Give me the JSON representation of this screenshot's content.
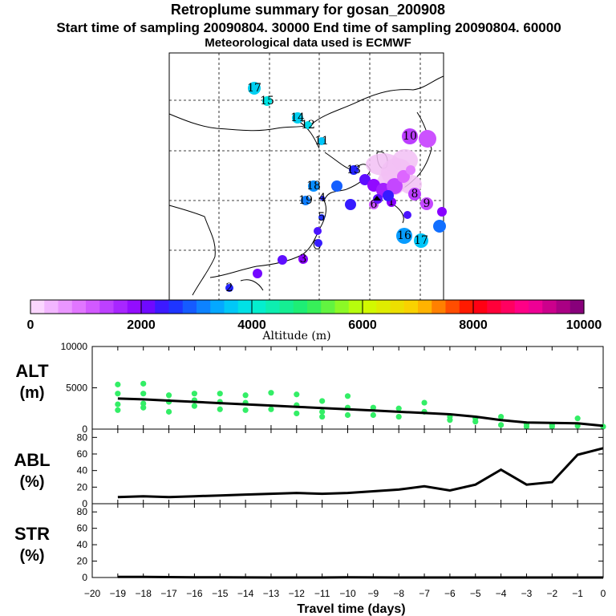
{
  "chart_data": [
    {
      "type": "map",
      "title": "Retroplume summary for gosan_200908",
      "subtitle": "Start time of sampling 20090804. 30000     End time of sampling 20090804. 60000",
      "subtitle2": "Meteorological data used is ECMWF",
      "colorbar": {
        "label": "Altitude (m)",
        "range": [
          0,
          10000
        ],
        "tick_labels": [
          "0",
          "2000",
          "4000",
          "6000",
          "8000",
          "10000"
        ]
      },
      "plume_labels": [
        "17",
        "15",
        "14",
        "12",
        "11",
        "10",
        "13",
        "18",
        "19",
        "16",
        "17",
        "9",
        "8",
        "6",
        "5",
        "4",
        "3",
        "2",
        "1"
      ]
    },
    {
      "type": "scatter",
      "ylabel_line1": "ALT",
      "ylabel_line2": "(m)",
      "ylim": [
        0,
        10000
      ],
      "y_tick_labels": [
        "0",
        "5000",
        "10000"
      ],
      "x": [
        -19,
        -18,
        -17,
        -16,
        -15,
        -14,
        -13,
        -12,
        -11,
        -10,
        -9,
        -8,
        -7,
        -6,
        -5,
        -4,
        -3,
        -2,
        -1,
        0
      ],
      "mean_line": [
        3700,
        3600,
        3450,
        3300,
        3150,
        3000,
        2850,
        2700,
        2550,
        2400,
        2250,
        2100,
        1950,
        1800,
        1500,
        1100,
        800,
        750,
        700,
        400
      ],
      "points": [
        [
          -19,
          5400
        ],
        [
          -19,
          4300
        ],
        [
          -19,
          3000
        ],
        [
          -19,
          2300
        ],
        [
          -18,
          5500
        ],
        [
          -18,
          4300
        ],
        [
          -18,
          3100
        ],
        [
          -18,
          2600
        ],
        [
          -17,
          4100
        ],
        [
          -17,
          3300
        ],
        [
          -17,
          2100
        ],
        [
          -16,
          4300
        ],
        [
          -16,
          3500
        ],
        [
          -16,
          2800
        ],
        [
          -15,
          4300
        ],
        [
          -15,
          3300
        ],
        [
          -15,
          2400
        ],
        [
          -14,
          4100
        ],
        [
          -14,
          3200
        ],
        [
          -14,
          2300
        ],
        [
          -13,
          4400
        ],
        [
          -13,
          2400
        ],
        [
          -12,
          4200
        ],
        [
          -12,
          2900
        ],
        [
          -12,
          1900
        ],
        [
          -11,
          3400
        ],
        [
          -11,
          2100
        ],
        [
          -11,
          1500
        ],
        [
          -10,
          4000
        ],
        [
          -10,
          2600
        ],
        [
          -10,
          1700
        ],
        [
          -9,
          2600
        ],
        [
          -9,
          1700
        ],
        [
          -8,
          2500
        ],
        [
          -8,
          1500
        ],
        [
          -7,
          3200
        ],
        [
          -7,
          2100
        ],
        [
          -6,
          1500
        ],
        [
          -6,
          1100
        ],
        [
          -5,
          1300
        ],
        [
          -5,
          900
        ],
        [
          -4,
          1500
        ],
        [
          -4,
          500
        ],
        [
          -3,
          600
        ],
        [
          -3,
          300
        ],
        [
          -2,
          500
        ],
        [
          -2,
          300
        ],
        [
          -1,
          1300
        ],
        [
          -1,
          400
        ],
        [
          0,
          300
        ]
      ]
    },
    {
      "type": "line",
      "ylabel_line1": "ABL",
      "ylabel_line2": "(%)",
      "ylim": [
        0,
        90
      ],
      "y_tick_labels": [
        "0",
        "20",
        "40",
        "60",
        "80"
      ],
      "x": [
        -19,
        -18,
        -17,
        -16,
        -15,
        -14,
        -13,
        -12,
        -11,
        -10,
        -9,
        -8,
        -7,
        -6,
        -5,
        -4,
        -3,
        -2,
        -1,
        0
      ],
      "values": [
        8,
        9,
        8,
        9,
        10,
        11,
        12,
        13,
        12,
        13,
        15,
        17,
        21,
        16,
        23,
        41,
        23,
        26,
        59,
        67
      ]
    },
    {
      "type": "line",
      "ylabel_line1": "STR",
      "ylabel_line2": "(%)",
      "ylim": [
        0,
        90
      ],
      "y_tick_labels": [
        "0",
        "20",
        "40",
        "60",
        "80"
      ],
      "x": [
        -19,
        -18,
        -17,
        -16,
        -15,
        -14,
        -13,
        -12,
        -11,
        -10,
        -9,
        -8,
        -7,
        -6,
        -5,
        -4,
        -3,
        -2,
        -1,
        0
      ],
      "values": [
        0.8,
        0.8,
        0.5,
        0.3,
        0.2,
        0.1,
        0,
        0,
        0,
        0.3,
        0.1,
        0,
        0,
        0,
        0,
        0,
        0,
        0,
        0,
        0
      ]
    },
    {
      "type": "axis",
      "xlabel": "Travel time (days)",
      "x_tick_labels": [
        "−20",
        "−19",
        "−18",
        "−17",
        "−16",
        "−15",
        "−14",
        "−13",
        "−12",
        "−11",
        "−10",
        "−9",
        "−8",
        "−7",
        "−6",
        "−5",
        "−4",
        "−3",
        "−2",
        "−1",
        "0"
      ]
    }
  ]
}
